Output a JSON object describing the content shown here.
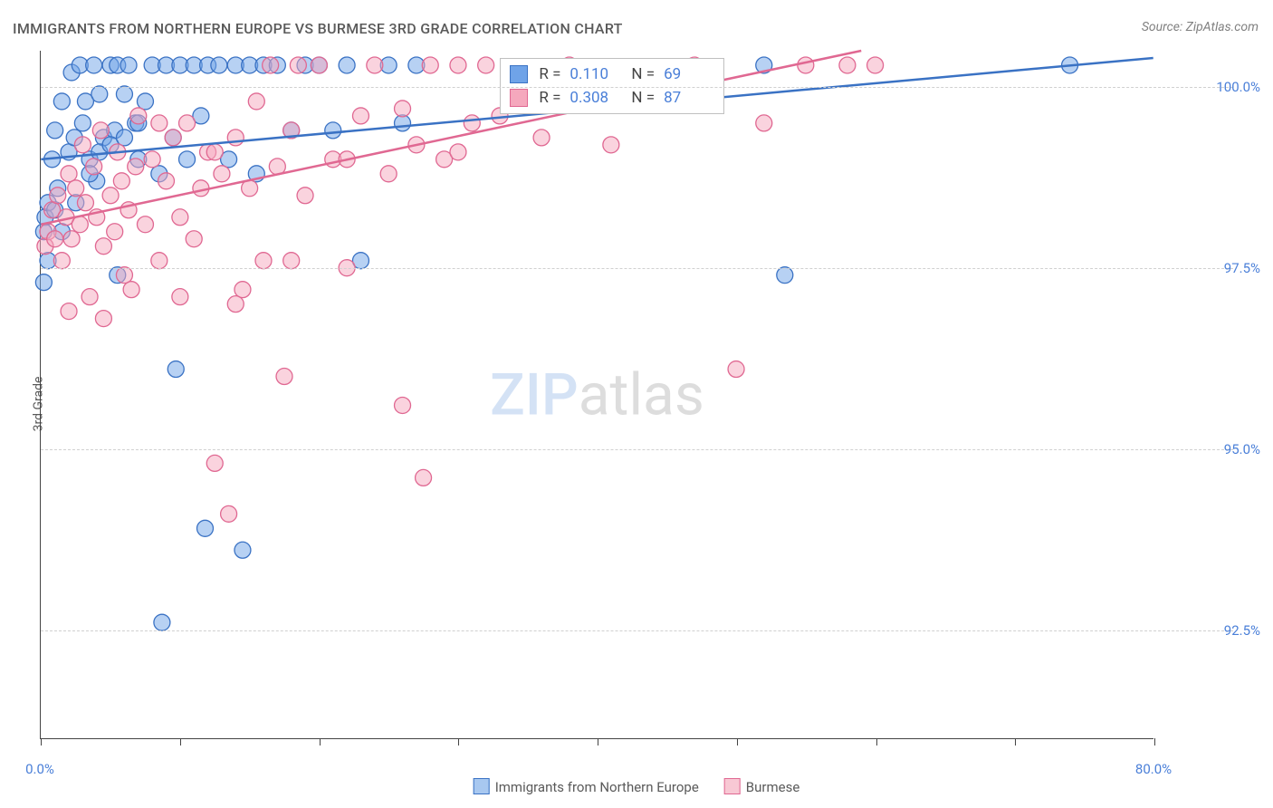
{
  "title": "IMMIGRANTS FROM NORTHERN EUROPE VS BURMESE 3RD GRADE CORRELATION CHART",
  "source": "Source: ZipAtlas.com",
  "ylabel": "3rd Grade",
  "watermark": {
    "part1": "ZIP",
    "part2": "atlas"
  },
  "chart": {
    "type": "scatter",
    "xlim": [
      0,
      80
    ],
    "ylim": [
      91,
      100.5
    ],
    "xticks": [
      0,
      10,
      20,
      30,
      40,
      50,
      60,
      70,
      80
    ],
    "xtick_labels_shown": {
      "0": "0.0%",
      "80": "80.0%"
    },
    "yticks": [
      92.5,
      95.0,
      97.5,
      100.0
    ],
    "ytick_labels": [
      "92.5%",
      "95.0%",
      "97.5%",
      "100.0%"
    ],
    "grid_color": "#d0d0d0",
    "background_color": "#ffffff",
    "marker_radius": 9,
    "marker_opacity": 0.5,
    "line_width": 2.5,
    "series": [
      {
        "name": "Immigrants from Northern Europe",
        "color_fill": "#6fa3e8",
        "color_stroke": "#3a72c4",
        "R": "0.110",
        "N": "69",
        "trend": {
          "x1": 0,
          "y1": 99.0,
          "x2": 80,
          "y2": 100.4
        },
        "points": [
          [
            0.3,
            98.2
          ],
          [
            0.5,
            98.4
          ],
          [
            0.8,
            99.0
          ],
          [
            1.0,
            99.4
          ],
          [
            1.2,
            98.6
          ],
          [
            1.5,
            99.8
          ],
          [
            2.0,
            99.1
          ],
          [
            2.2,
            100.2
          ],
          [
            2.4,
            99.3
          ],
          [
            2.8,
            100.3
          ],
          [
            3.0,
            99.5
          ],
          [
            3.2,
            99.8
          ],
          [
            3.5,
            99.0
          ],
          [
            3.8,
            100.3
          ],
          [
            4.0,
            98.7
          ],
          [
            4.2,
            99.9
          ],
          [
            4.5,
            99.3
          ],
          [
            5.0,
            100.3
          ],
          [
            5.3,
            99.4
          ],
          [
            5.5,
            100.3
          ],
          [
            6.0,
            99.9
          ],
          [
            6.3,
            100.3
          ],
          [
            6.8,
            99.5
          ],
          [
            7.0,
            99.0
          ],
          [
            7.5,
            99.8
          ],
          [
            8.0,
            100.3
          ],
          [
            8.5,
            98.8
          ],
          [
            9.0,
            100.3
          ],
          [
            9.5,
            99.3
          ],
          [
            10.0,
            100.3
          ],
          [
            10.5,
            99.0
          ],
          [
            11.0,
            100.3
          ],
          [
            11.5,
            99.6
          ],
          [
            12.0,
            100.3
          ],
          [
            12.8,
            100.3
          ],
          [
            13.5,
            99.0
          ],
          [
            14.0,
            100.3
          ],
          [
            15.0,
            100.3
          ],
          [
            15.5,
            98.8
          ],
          [
            16.0,
            100.3
          ],
          [
            17.0,
            100.3
          ],
          [
            18.0,
            99.4
          ],
          [
            19.0,
            100.3
          ],
          [
            20.0,
            100.3
          ],
          [
            21.0,
            99.4
          ],
          [
            22.0,
            100.3
          ],
          [
            23.0,
            97.6
          ],
          [
            25.0,
            100.3
          ],
          [
            26.0,
            99.5
          ],
          [
            27.0,
            100.3
          ],
          [
            5.5,
            97.4
          ],
          [
            8.7,
            92.6
          ],
          [
            9.7,
            96.1
          ],
          [
            11.8,
            93.9
          ],
          [
            14.5,
            93.6
          ],
          [
            52.0,
            100.3
          ],
          [
            53.5,
            97.4
          ],
          [
            74.0,
            100.3
          ],
          [
            0.2,
            98.0
          ],
          [
            0.2,
            97.3
          ],
          [
            0.5,
            97.6
          ],
          [
            1.0,
            98.3
          ],
          [
            1.5,
            98.0
          ],
          [
            2.5,
            98.4
          ],
          [
            3.5,
            98.8
          ],
          [
            4.2,
            99.1
          ],
          [
            5.0,
            99.2
          ],
          [
            6.0,
            99.3
          ],
          [
            7.0,
            99.5
          ]
        ]
      },
      {
        "name": "Burmese",
        "color_fill": "#f5a8bd",
        "color_stroke": "#e06892",
        "R": "0.308",
        "N": "87",
        "trend": {
          "x1": 0,
          "y1": 98.1,
          "x2": 59,
          "y2": 100.5
        },
        "points": [
          [
            0.3,
            97.8
          ],
          [
            0.5,
            98.0
          ],
          [
            0.8,
            98.3
          ],
          [
            1.0,
            97.9
          ],
          [
            1.2,
            98.5
          ],
          [
            1.5,
            97.6
          ],
          [
            1.8,
            98.2
          ],
          [
            2.0,
            98.8
          ],
          [
            2.2,
            97.9
          ],
          [
            2.5,
            98.6
          ],
          [
            2.8,
            98.1
          ],
          [
            3.0,
            99.2
          ],
          [
            3.2,
            98.4
          ],
          [
            3.5,
            97.1
          ],
          [
            3.8,
            98.9
          ],
          [
            4.0,
            98.2
          ],
          [
            4.3,
            99.4
          ],
          [
            4.5,
            97.8
          ],
          [
            5.0,
            98.5
          ],
          [
            5.3,
            98.0
          ],
          [
            5.5,
            99.1
          ],
          [
            5.8,
            98.7
          ],
          [
            6.0,
            97.4
          ],
          [
            6.3,
            98.3
          ],
          [
            6.8,
            98.9
          ],
          [
            7.0,
            99.6
          ],
          [
            7.5,
            98.1
          ],
          [
            8.0,
            99.0
          ],
          [
            8.5,
            97.6
          ],
          [
            9.0,
            98.7
          ],
          [
            9.5,
            99.3
          ],
          [
            10.0,
            98.2
          ],
          [
            10.5,
            99.5
          ],
          [
            11.0,
            97.9
          ],
          [
            11.5,
            98.6
          ],
          [
            12.0,
            99.1
          ],
          [
            12.5,
            94.8
          ],
          [
            13.0,
            98.8
          ],
          [
            13.5,
            94.1
          ],
          [
            14.0,
            99.3
          ],
          [
            14.5,
            97.2
          ],
          [
            15.0,
            98.6
          ],
          [
            15.5,
            99.8
          ],
          [
            16.0,
            97.6
          ],
          [
            16.5,
            100.3
          ],
          [
            17.0,
            98.9
          ],
          [
            17.5,
            96.0
          ],
          [
            18.0,
            99.4
          ],
          [
            18.5,
            100.3
          ],
          [
            19.0,
            98.5
          ],
          [
            20.0,
            100.3
          ],
          [
            21.0,
            99.0
          ],
          [
            22.0,
            97.5
          ],
          [
            23.0,
            99.6
          ],
          [
            24.0,
            100.3
          ],
          [
            25.0,
            98.8
          ],
          [
            26.0,
            95.6
          ],
          [
            27.0,
            99.2
          ],
          [
            27.5,
            94.6
          ],
          [
            28.0,
            100.3
          ],
          [
            29.0,
            99.0
          ],
          [
            30.0,
            100.3
          ],
          [
            31.0,
            99.5
          ],
          [
            32.0,
            100.3
          ],
          [
            2.0,
            96.9
          ],
          [
            4.5,
            96.8
          ],
          [
            6.5,
            97.2
          ],
          [
            8.5,
            99.5
          ],
          [
            10.0,
            97.1
          ],
          [
            12.5,
            99.1
          ],
          [
            14.0,
            97.0
          ],
          [
            18.0,
            97.6
          ],
          [
            22.0,
            99.0
          ],
          [
            26.0,
            99.7
          ],
          [
            30.0,
            99.1
          ],
          [
            33.0,
            99.6
          ],
          [
            35.0,
            100.2
          ],
          [
            36.0,
            99.3
          ],
          [
            38.0,
            100.3
          ],
          [
            41.0,
            99.2
          ],
          [
            44.0,
            100.0
          ],
          [
            47.0,
            100.3
          ],
          [
            50.0,
            96.1
          ],
          [
            52.0,
            99.5
          ],
          [
            55.0,
            100.3
          ],
          [
            58.0,
            100.3
          ],
          [
            60.0,
            100.3
          ]
        ]
      }
    ]
  },
  "legend": {
    "items": [
      {
        "label": "Immigrants from Northern Europe",
        "fill": "#a8c8f0",
        "stroke": "#3a72c4"
      },
      {
        "label": "Burmese",
        "fill": "#f8c8d4",
        "stroke": "#e06892"
      }
    ]
  }
}
